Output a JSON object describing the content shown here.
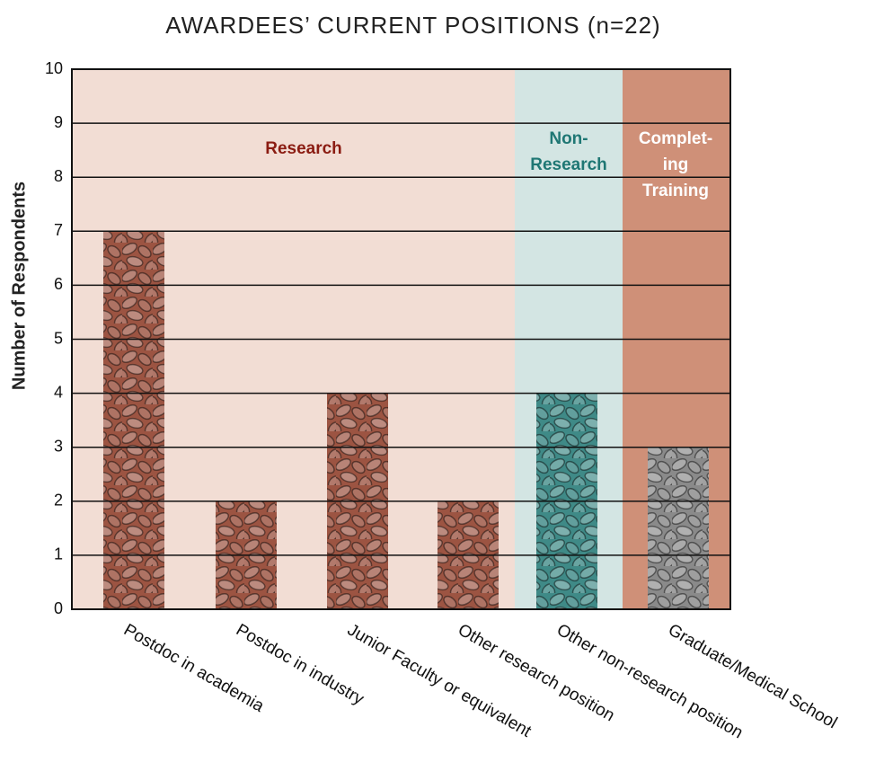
{
  "chart_data": {
    "type": "bar",
    "title": "AWARDEES’ CURRENT POSITIONS (n=22)",
    "y_label": "Number of Respondents",
    "categories": [
      "Postdoc in academia",
      "Postdoc in industry",
      "Junior Faculty or equivalent",
      "Other research position",
      "Other non-research position",
      "Graduate/Medical School"
    ],
    "values": [
      7,
      2,
      4,
      2,
      4,
      3
    ],
    "colors": [
      "#9c5442",
      "#9c5442",
      "#9c5442",
      "#9c5442",
      "#3f8a87",
      "#8a8a8a"
    ],
    "regions": [
      {
        "label": [
          "Research"
        ],
        "color": "#f2ddd4",
        "text_color": "#8b1c12"
      },
      {
        "label": [
          "Non-",
          "Research"
        ],
        "color": "#d3e5e3",
        "text_color": "#1f7774"
      },
      {
        "label": [
          "Complet-",
          "ing",
          "Training"
        ],
        "color": "#cf9078",
        "text_color": "#ffffff"
      }
    ],
    "ylim": [
      0,
      10
    ],
    "yticks": [
      0,
      1,
      2,
      3,
      4,
      5,
      6,
      7,
      8,
      9,
      10
    ],
    "grid": true
  }
}
